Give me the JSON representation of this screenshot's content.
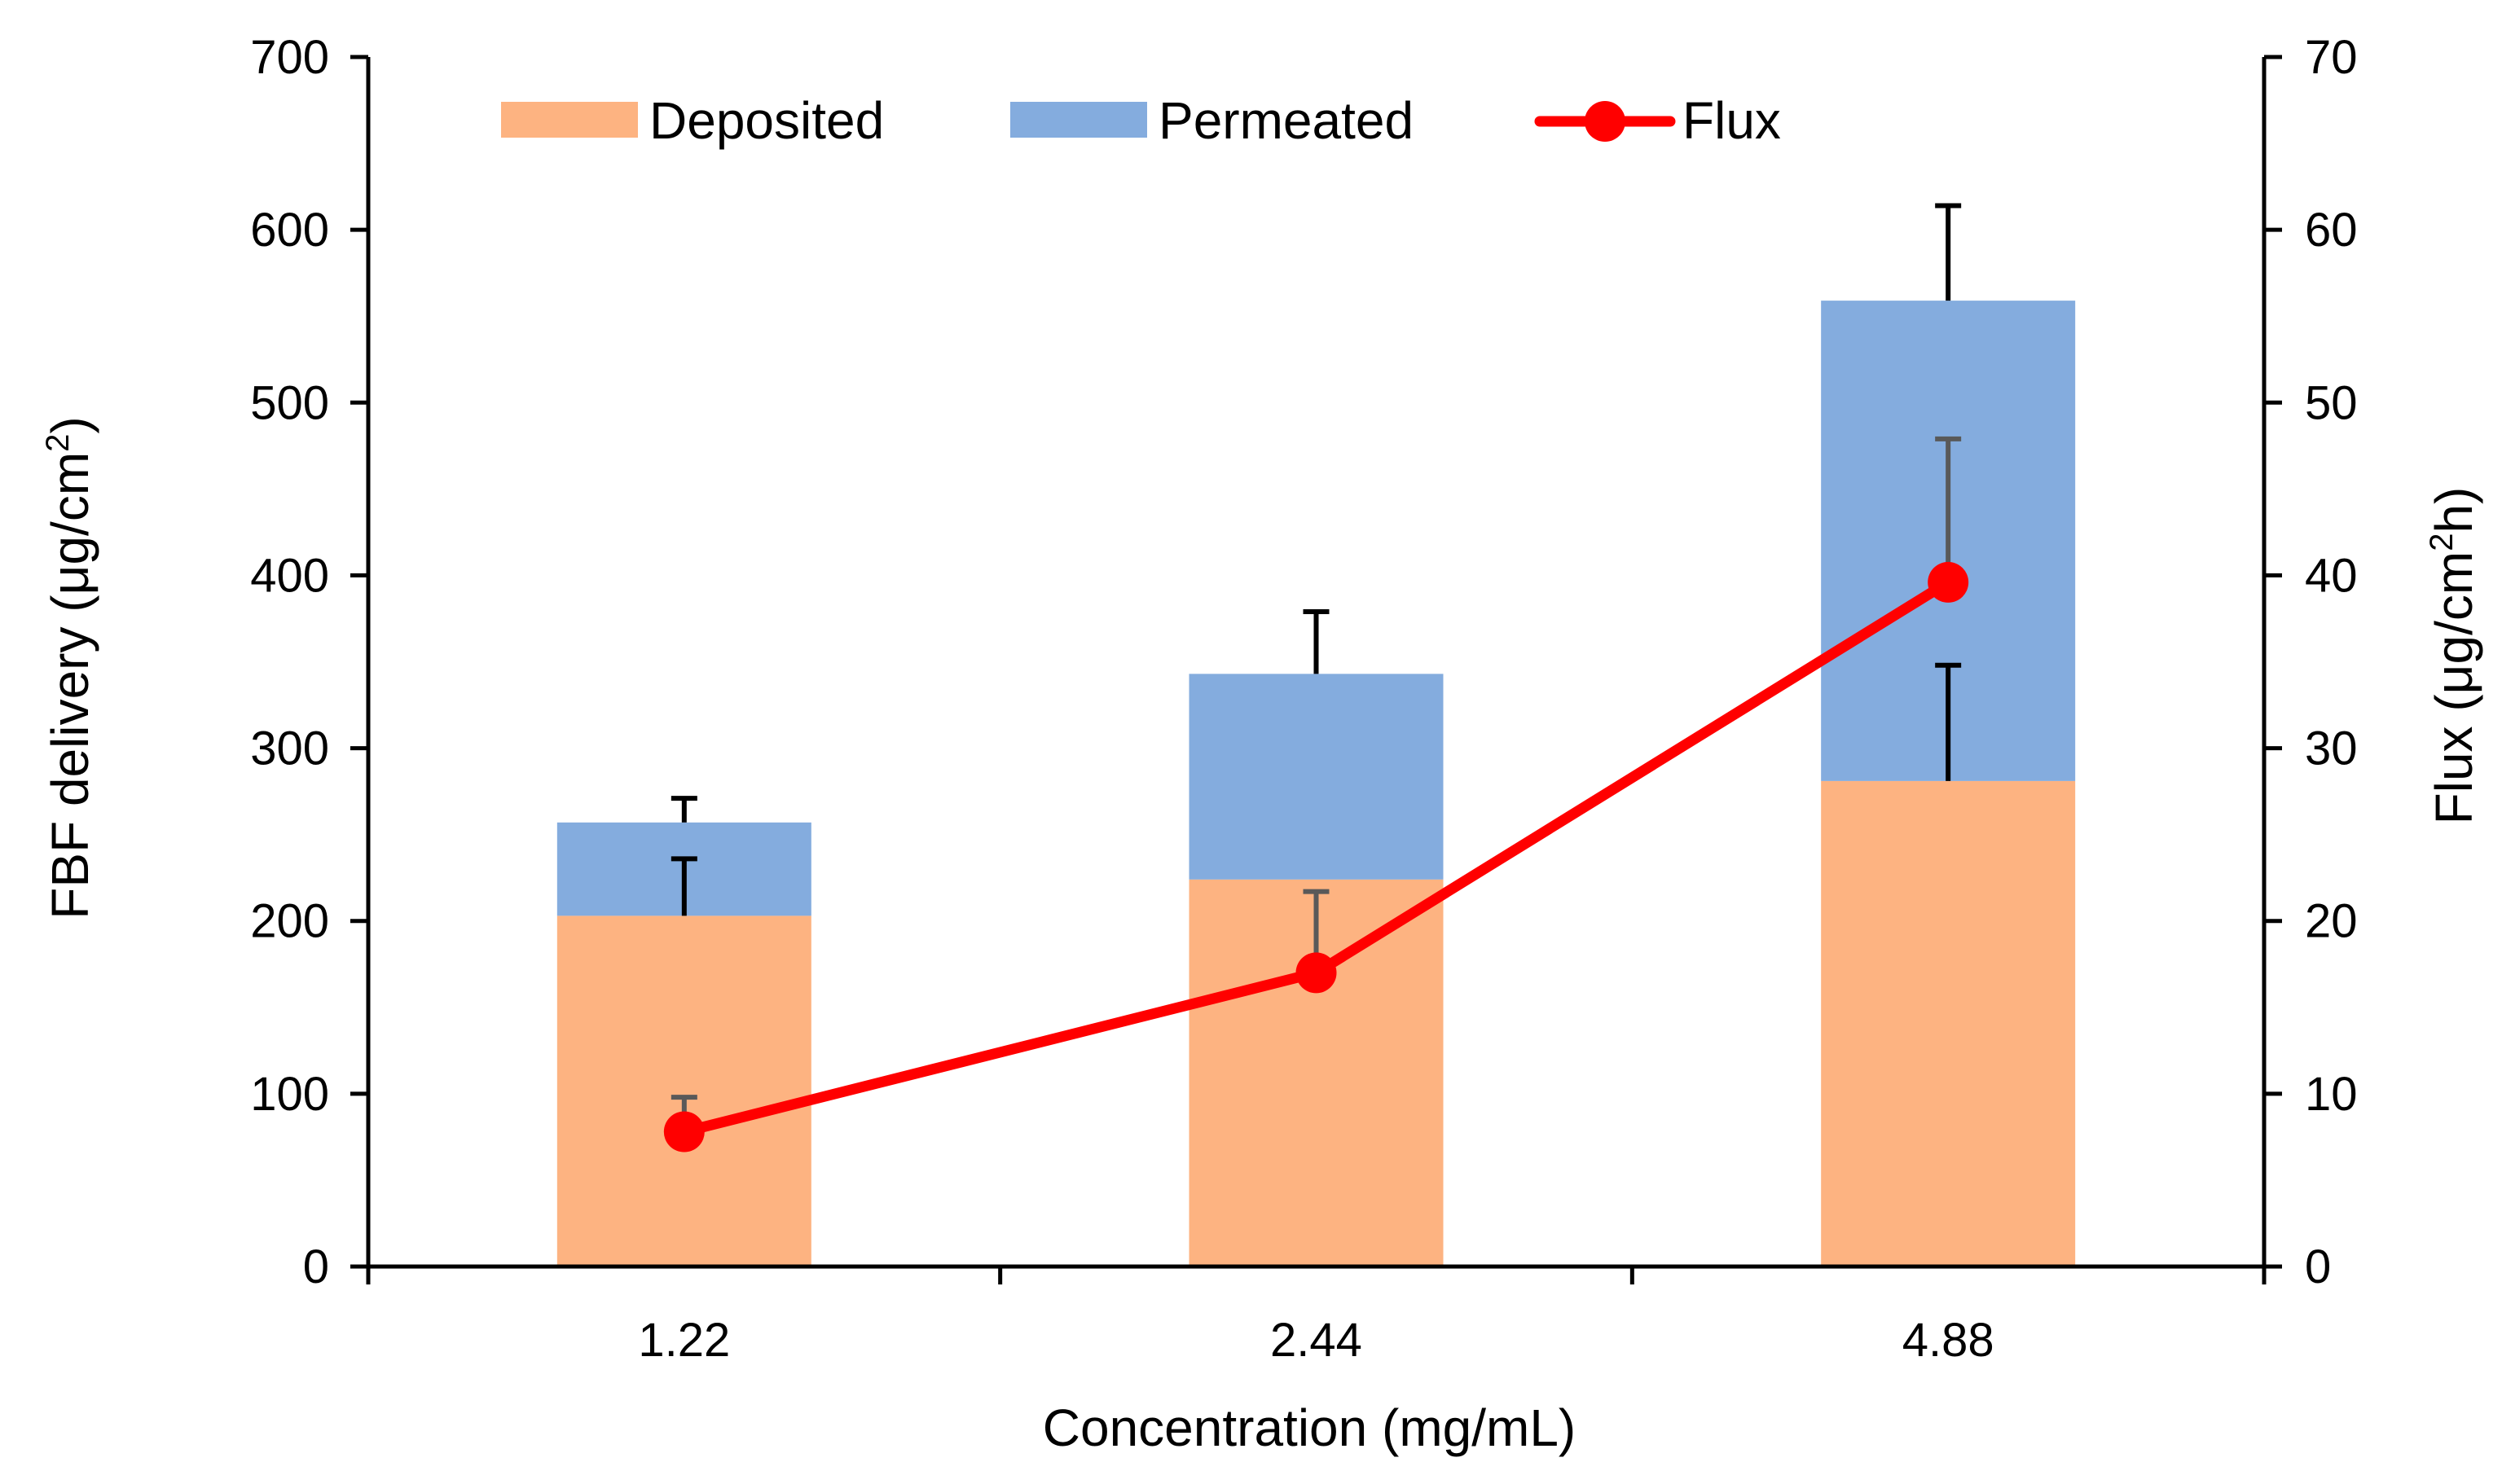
{
  "chart_data": {
    "type": "bar",
    "stacked": true,
    "categories": [
      "1.22",
      "2.44",
      "4.88"
    ],
    "series": [
      {
        "name": "Deposited",
        "kind": "bar",
        "axis": "left",
        "values": [
          203,
          224,
          281
        ],
        "error": [
          33,
          0,
          67
        ],
        "error_color": "#000000",
        "color": "#FDB381"
      },
      {
        "name": "Permeated",
        "kind": "bar",
        "axis": "left",
        "values": [
          54,
          119,
          278
        ],
        "error": [
          14,
          36,
          55
        ],
        "error_color": "#000000",
        "color": "#84ACDE"
      },
      {
        "name": "Flux",
        "kind": "line",
        "axis": "right",
        "values": [
          7.8,
          17.0,
          39.6
        ],
        "error": [
          2.0,
          4.7,
          8.3
        ],
        "error_color": "#595959",
        "color": "#FF0000"
      }
    ],
    "xlabel": "Concentration (mg/mL)",
    "ylabel": {
      "main": "FBF delivery (μg/cm",
      "sup": "2",
      "tail": ")"
    },
    "y2label": {
      "main": "Flux (μg/cm",
      "sup": "2",
      "tail": "h)"
    },
    "ylim": [
      0,
      700
    ],
    "y2lim": [
      0,
      70
    ],
    "yticks": [
      "0",
      "100",
      "200",
      "300",
      "400",
      "500",
      "600",
      "700"
    ],
    "y2ticks": [
      "0",
      "10",
      "20",
      "30",
      "40",
      "50",
      "60",
      "70"
    ],
    "grid": false,
    "legend_position": "top"
  }
}
